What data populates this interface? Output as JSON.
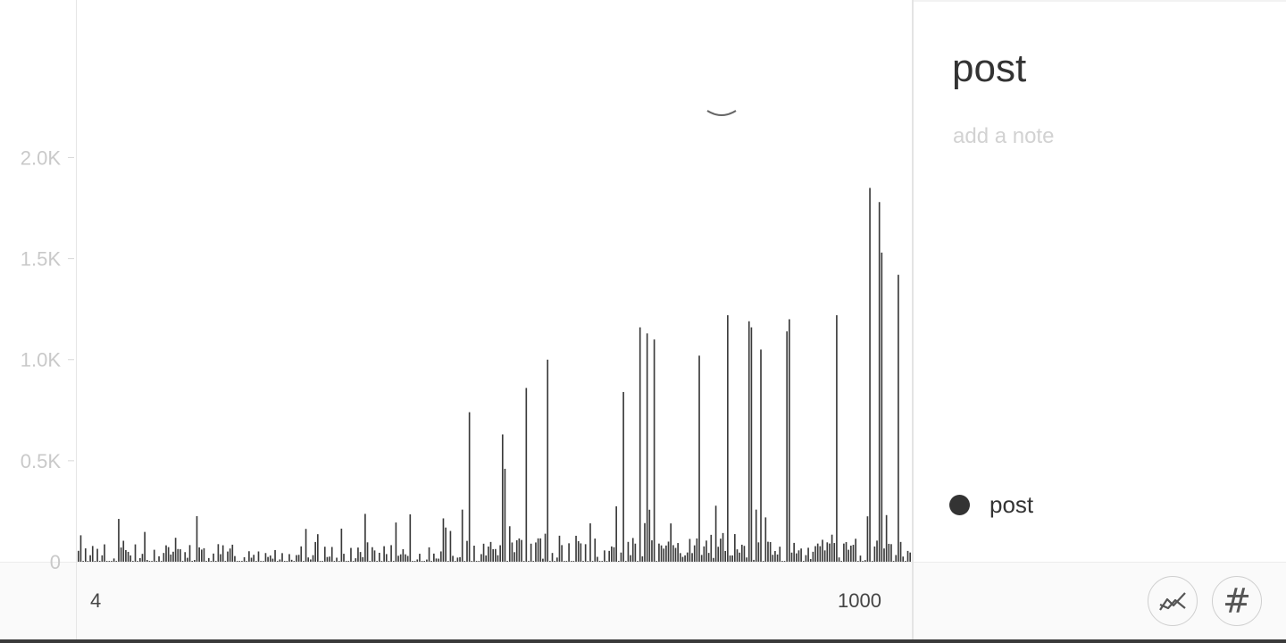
{
  "sidebar": {
    "title": "post",
    "note_placeholder": "add a note",
    "legend": [
      {
        "label": "post",
        "color": "#333333"
      }
    ]
  },
  "controls": {
    "line_view_icon": "line-chart-icon",
    "number_view_icon": "hash-icon",
    "number_view_glyph": "#"
  },
  "chart_data": {
    "type": "bar",
    "x_tick_labels": [
      "4",
      "1000"
    ],
    "y_tick_labels": [
      "0",
      "0.5K",
      "1.0K",
      "1.5K",
      "2.0K"
    ],
    "y_ticks": [
      0,
      500,
      1000,
      1500,
      2000
    ],
    "ylim": [
      0,
      2780
    ],
    "x_range": [
      4,
      1000
    ],
    "grid": false,
    "color": "#3a3a3a",
    "series": [
      {
        "bar_count": 352,
        "peaks": [
          {
            "x_index": 165,
            "value": 740
          },
          {
            "x_index": 179,
            "value": 630
          },
          {
            "x_index": 180,
            "value": 460
          },
          {
            "x_index": 189,
            "value": 860
          },
          {
            "x_index": 198,
            "value": 1000
          },
          {
            "x_index": 230,
            "value": 840
          },
          {
            "x_index": 237,
            "value": 1160
          },
          {
            "x_index": 240,
            "value": 1130
          },
          {
            "x_index": 243,
            "value": 1100
          },
          {
            "x_index": 262,
            "value": 1020
          },
          {
            "x_index": 274,
            "value": 1220
          },
          {
            "x_index": 283,
            "value": 1190
          },
          {
            "x_index": 284,
            "value": 1160
          },
          {
            "x_index": 288,
            "value": 1050
          },
          {
            "x_index": 299,
            "value": 1140
          },
          {
            "x_index": 300,
            "value": 1200
          },
          {
            "x_index": 320,
            "value": 1220
          },
          {
            "x_index": 334,
            "value": 1850
          },
          {
            "x_index": 338,
            "value": 1780
          },
          {
            "x_index": 339,
            "value": 1530
          },
          {
            "x_index": 346,
            "value": 1420
          },
          {
            "x_index": 165,
            "value": 740
          }
        ]
      }
    ]
  }
}
